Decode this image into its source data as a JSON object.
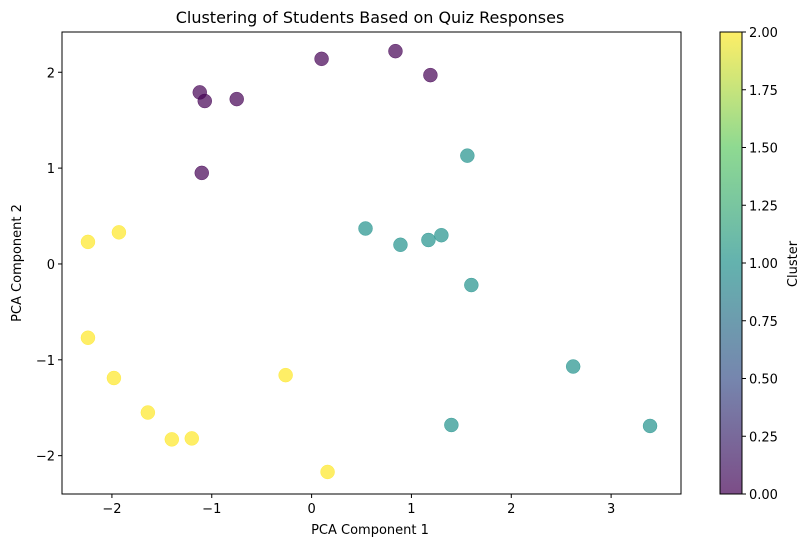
{
  "chart_data": {
    "type": "scatter",
    "title": "Clustering of Students Based on Quiz Responses",
    "xlabel": "PCA Component 1",
    "ylabel": "PCA Component 2",
    "xlim": [
      -2.5,
      3.7
    ],
    "ylim": [
      -2.4,
      2.42
    ],
    "xticks": [
      {
        "value": -2,
        "label": "−2"
      },
      {
        "value": -1,
        "label": "−1"
      },
      {
        "value": 0,
        "label": "0"
      },
      {
        "value": 1,
        "label": "1"
      },
      {
        "value": 2,
        "label": "2"
      },
      {
        "value": 3,
        "label": "3"
      }
    ],
    "yticks": [
      {
        "value": -2,
        "label": "−2"
      },
      {
        "value": -1,
        "label": "−1"
      },
      {
        "value": 0,
        "label": "0"
      },
      {
        "value": 1,
        "label": "1"
      },
      {
        "value": 2,
        "label": "2"
      }
    ],
    "grid": false,
    "colormap": "viridis",
    "marker_alpha": 0.7,
    "cluster_colors": [
      "#440154",
      "#21918c",
      "#fde725"
    ],
    "points": [
      {
        "x": -1.12,
        "y": 1.79,
        "cluster": 0
      },
      {
        "x": -1.07,
        "y": 1.7,
        "cluster": 0
      },
      {
        "x": -0.75,
        "y": 1.72,
        "cluster": 0
      },
      {
        "x": -1.1,
        "y": 0.95,
        "cluster": 0
      },
      {
        "x": 0.1,
        "y": 2.14,
        "cluster": 0
      },
      {
        "x": 0.84,
        "y": 2.22,
        "cluster": 0
      },
      {
        "x": 1.19,
        "y": 1.97,
        "cluster": 0
      },
      {
        "x": 1.56,
        "y": 1.13,
        "cluster": 1
      },
      {
        "x": 0.54,
        "y": 0.37,
        "cluster": 1
      },
      {
        "x": 0.89,
        "y": 0.2,
        "cluster": 1
      },
      {
        "x": 1.17,
        "y": 0.25,
        "cluster": 1
      },
      {
        "x": 1.3,
        "y": 0.3,
        "cluster": 1
      },
      {
        "x": 1.6,
        "y": -0.22,
        "cluster": 1
      },
      {
        "x": 2.62,
        "y": -1.07,
        "cluster": 1
      },
      {
        "x": 1.4,
        "y": -1.68,
        "cluster": 1
      },
      {
        "x": 3.39,
        "y": -1.69,
        "cluster": 1
      },
      {
        "x": -2.24,
        "y": 0.23,
        "cluster": 2
      },
      {
        "x": -1.93,
        "y": 0.33,
        "cluster": 2
      },
      {
        "x": -2.24,
        "y": -0.77,
        "cluster": 2
      },
      {
        "x": -1.98,
        "y": -1.19,
        "cluster": 2
      },
      {
        "x": -0.26,
        "y": -1.16,
        "cluster": 2
      },
      {
        "x": -1.64,
        "y": -1.55,
        "cluster": 2
      },
      {
        "x": -1.4,
        "y": -1.83,
        "cluster": 2
      },
      {
        "x": -1.2,
        "y": -1.82,
        "cluster": 2
      },
      {
        "x": 0.16,
        "y": -2.17,
        "cluster": 2
      }
    ],
    "colorbar": {
      "label": "Cluster",
      "min": 0,
      "max": 2,
      "ticks": [
        {
          "value": 0.0,
          "label": "0.00"
        },
        {
          "value": 0.25,
          "label": "0.25"
        },
        {
          "value": 0.5,
          "label": "0.50"
        },
        {
          "value": 0.75,
          "label": "0.75"
        },
        {
          "value": 1.0,
          "label": "1.00"
        },
        {
          "value": 1.25,
          "label": "1.25"
        },
        {
          "value": 1.5,
          "label": "1.50"
        },
        {
          "value": 1.75,
          "label": "1.75"
        },
        {
          "value": 2.0,
          "label": "2.00"
        }
      ],
      "gradient_stops": [
        "#440154",
        "#3b528b",
        "#21918c",
        "#5ec962",
        "#fde725"
      ]
    }
  }
}
